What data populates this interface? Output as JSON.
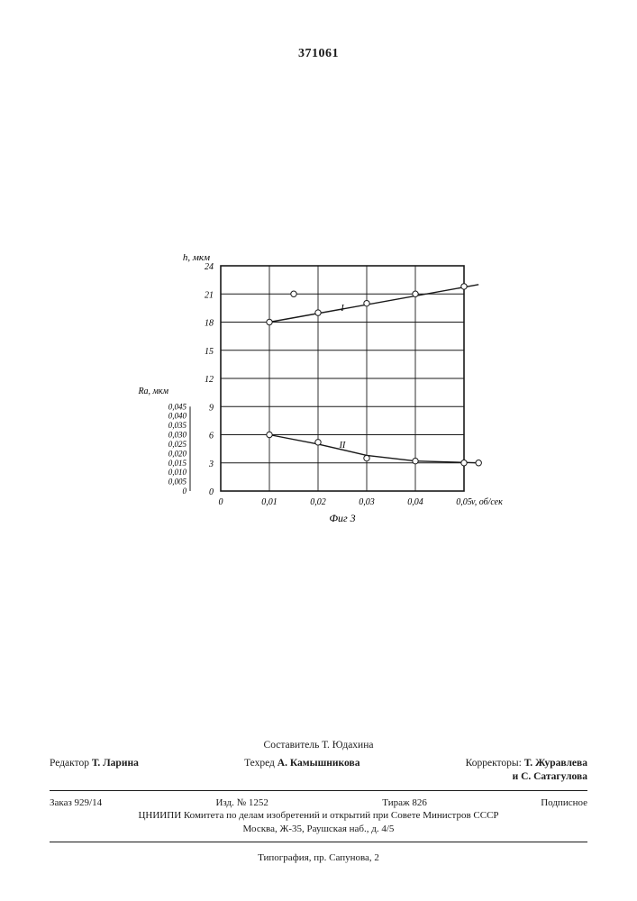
{
  "patent_number": "371061",
  "chart": {
    "type": "line+scatter",
    "background_color": "#ffffff",
    "grid_color": "#1a1a1a",
    "marker_stroke": "#1a1a1a",
    "line_color": "#1a1a1a",
    "line_width": 1.4,
    "marker_radius": 3.2,
    "caption": "Фиг 3",
    "x_axis": {
      "label": "v, об/сек",
      "min": 0,
      "max": 0.05,
      "tick_step": 0.01,
      "ticks": [
        "0",
        "0,01",
        "0,02",
        "0,03",
        "0,04",
        "0,05"
      ],
      "label_fontsize": 10
    },
    "y_axis_left": {
      "label": "h, мкм",
      "min": 0,
      "max": 24,
      "tick_step": 3,
      "ticks": [
        "0",
        "3",
        "6",
        "9",
        "12",
        "15",
        "18",
        "21",
        "24"
      ],
      "label_fontsize": 10
    },
    "y_axis_ra": {
      "label": "Ra, мкм",
      "ticks": [
        "0",
        "0,005",
        "0,010",
        "0,015",
        "0,020",
        "0,025",
        "0,030",
        "0,035",
        "0,040",
        "0,045"
      ],
      "label_fontsize": 9
    },
    "series": [
      {
        "name": "I",
        "label_pos": {
          "x": 0.025,
          "y": 19.2
        },
        "points": [
          {
            "x": 0.01,
            "y": 18.0
          },
          {
            "x": 0.015,
            "y": 21.0
          },
          {
            "x": 0.02,
            "y": 19.0
          },
          {
            "x": 0.03,
            "y": 20.0
          },
          {
            "x": 0.04,
            "y": 21.0
          },
          {
            "x": 0.05,
            "y": 21.8
          }
        ],
        "line": [
          {
            "x": 0.01,
            "y": 18.0
          },
          {
            "x": 0.053,
            "y": 22.0
          }
        ]
      },
      {
        "name": "II",
        "label_pos": {
          "x": 0.025,
          "y": 4.6
        },
        "points": [
          {
            "x": 0.01,
            "y": 6.0
          },
          {
            "x": 0.02,
            "y": 5.2
          },
          {
            "x": 0.03,
            "y": 3.5
          },
          {
            "x": 0.04,
            "y": 3.2
          },
          {
            "x": 0.05,
            "y": 3.0
          },
          {
            "x": 0.053,
            "y": 3.0
          }
        ],
        "line": [
          {
            "x": 0.01,
            "y": 6.0
          },
          {
            "x": 0.02,
            "y": 5.0
          },
          {
            "x": 0.03,
            "y": 3.8
          },
          {
            "x": 0.04,
            "y": 3.2
          },
          {
            "x": 0.053,
            "y": 3.0
          }
        ]
      }
    ]
  },
  "footer": {
    "compiler": "Составитель Т. Юдахина",
    "editor_label": "Редактор",
    "editor": "Т. Ларина",
    "tech_ed_label": "Техред",
    "tech_ed": "А. Камышникова",
    "correctors_label": "Корректоры:",
    "correctors_1": "Т. Журавлева",
    "correctors_2": "и С. Сатагулова",
    "order": "Заказ 929/14",
    "issue": "Изд. № 1252",
    "print_run": "Тираж 826",
    "subscription": "Подписное",
    "org_1": "ЦНИИПИ Комитета по делам изобретений и открытий при Совете Министров СССР",
    "org_2": "Москва, Ж-35, Раушская наб., д. 4/5",
    "typography": "Типография, пр. Сапунова, 2"
  }
}
